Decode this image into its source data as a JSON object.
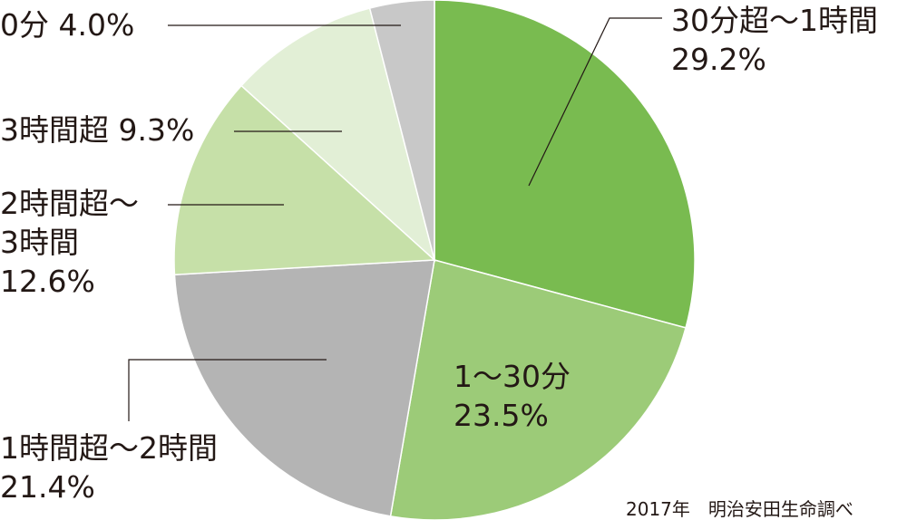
{
  "chart_data": {
    "type": "pie",
    "title": "",
    "start_angle_deg": 0,
    "direction": "clockwise",
    "slices": [
      {
        "label": "30分超〜1時間",
        "value": 29.2,
        "display": "29.2%",
        "color": "#79bb50"
      },
      {
        "label": "1〜30分",
        "value": 23.5,
        "display": "23.5%",
        "color": "#9ccb78"
      },
      {
        "label": "1時間超〜2時間",
        "value": 21.4,
        "display": "21.4%",
        "color": "#b4b4b4"
      },
      {
        "label": "2時間超〜3時間",
        "value": 12.6,
        "display": "12.6%",
        "color": "#c6e0a8"
      },
      {
        "label": "3時間超",
        "value": 9.3,
        "display": "9.3%",
        "color": "#e2efd6"
      },
      {
        "label": "0分",
        "value": 4.0,
        "display": "4.0%",
        "color": "#c8c8c8"
      }
    ]
  },
  "labels": {
    "s0_line1": "30分超〜1時間",
    "s0_line2": "29.2%",
    "s1_line1": "1〜30分",
    "s1_line2": "23.5%",
    "s2_line1": "1時間超〜2時間",
    "s2_line2": "21.4%",
    "s3_line1": "2時間超〜",
    "s3_line2": "3時間",
    "s3_line3": "12.6%",
    "s4_line1": "3時間超 9.3%",
    "s5_line1": "0分 4.0%"
  },
  "source_note": "2017年　明治安田生命調べ",
  "style": {
    "leader_color": "#231815",
    "slice_stroke": "#ffffff"
  }
}
